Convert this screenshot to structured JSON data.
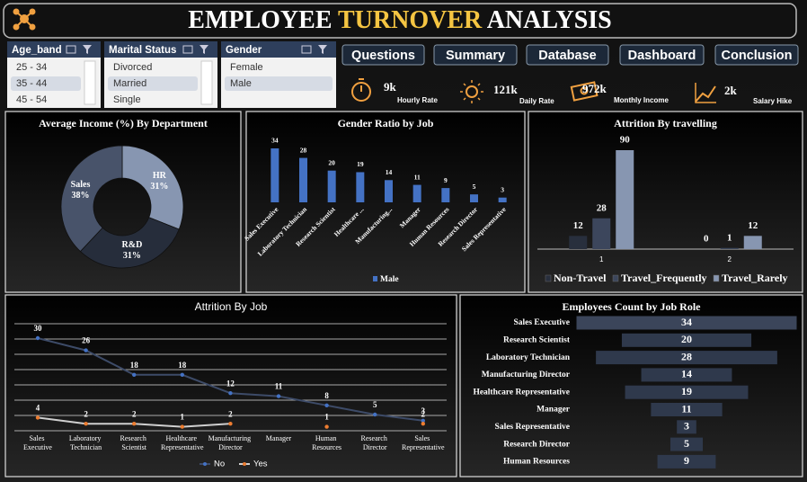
{
  "header": {
    "title_words": [
      "EMPLOYEE",
      "TURNOVER",
      "ANALYSIS"
    ]
  },
  "slicers": [
    {
      "title": "Age_band",
      "items": [
        "25 - 34",
        "35 - 44",
        "45 - 54"
      ],
      "selected": 1
    },
    {
      "title": "Marital Status",
      "items": [
        "Divorced",
        "Married",
        "Single"
      ],
      "selected": 1
    },
    {
      "title": "Gender",
      "items": [
        "Female",
        "Male"
      ],
      "selected": 1
    }
  ],
  "buttons": [
    "Questions",
    "Summary",
    "Database",
    "Dashboard",
    "Conclusion"
  ],
  "kpis": [
    {
      "value": "9k",
      "label": "Hourly Rate"
    },
    {
      "value": "121k",
      "label": "Daily Rate"
    },
    {
      "value": "972k",
      "label": "Monthly Income"
    },
    {
      "value": "2k",
      "label": "Salary Hike"
    }
  ],
  "chart_data": [
    {
      "type": "donut",
      "title": "Average Income (%) By Department",
      "categories": [
        "HR",
        "R&D",
        "Sales"
      ],
      "values": [
        31,
        31,
        38
      ],
      "value_labels": [
        "31%",
        "31%",
        "38%"
      ],
      "colors": [
        "#8796b1",
        "#262d3b",
        "#48536a"
      ]
    },
    {
      "type": "bar",
      "title": "Gender Ratio by Job",
      "categories": [
        "Sales Executive",
        "Laboratory Technician",
        "Research Scientist",
        "Healthcare ...",
        "Manufacturing...",
        "Manager",
        "Human Resources",
        "Research Director",
        "Sales Representative"
      ],
      "series": [
        {
          "name": "Male",
          "color": "#4472c4",
          "values": [
            34,
            28,
            20,
            19,
            14,
            11,
            9,
            5,
            3
          ]
        }
      ]
    },
    {
      "type": "grouped_bar",
      "title": "Attrition By travelling",
      "categories": [
        "1",
        "2"
      ],
      "series": [
        {
          "name": "Non-Travel",
          "color": "#282f3d",
          "values": [
            12,
            0
          ]
        },
        {
          "name": "Travel_Frequently",
          "color": "#3c465c",
          "values": [
            28,
            1
          ]
        },
        {
          "name": "Travel_Rarely",
          "color": "#8796b1",
          "values": [
            90,
            12
          ]
        }
      ]
    },
    {
      "type": "line",
      "title": "Attrition By Job",
      "categories": [
        "Sales Executive",
        "Laboratory Technician",
        "Research Scientist",
        "Healthcare Representative",
        "Manufacturing Director",
        "Manager",
        "Human Resources",
        "Research Director",
        "Sales Representative"
      ],
      "series": [
        {
          "name": "No",
          "color": "#3d4b68",
          "marker_color": "#4472c4",
          "values": [
            30,
            26,
            18,
            18,
            12,
            11,
            8,
            5,
            3
          ]
        },
        {
          "name": "Yes",
          "color": "#cfcfcf",
          "marker_color": "#ed7d31",
          "values": [
            4,
            2,
            2,
            1,
            2,
            null,
            1,
            null,
            2
          ]
        }
      ]
    },
    {
      "type": "funnel",
      "title": "Employees Count by Job Role",
      "categories": [
        "Sales Executive",
        "Research Scientist",
        "Laboratory Technician",
        "Manufacturing Director",
        "Healthcare Representative",
        "Manager",
        "Sales Representative",
        "Research Director",
        "Human Resources"
      ],
      "values": [
        34,
        20,
        28,
        14,
        19,
        11,
        3,
        5,
        9
      ],
      "color": "#2f394c",
      "highlight_color": "#3b455a"
    }
  ]
}
